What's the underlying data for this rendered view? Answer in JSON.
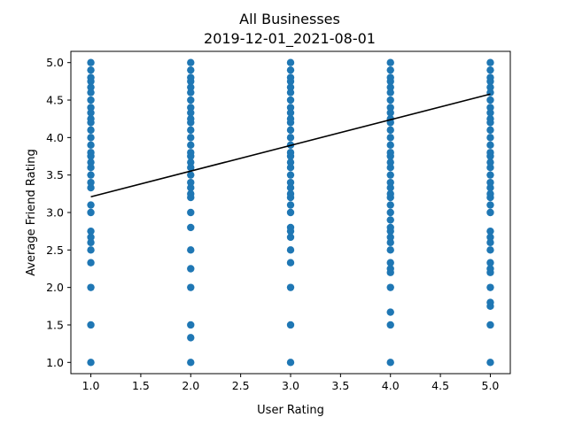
{
  "chart_data": {
    "type": "scatter",
    "title": "All Businesses",
    "subtitle": "2019-12-01_2021-08-01",
    "xlabel": "User Rating",
    "ylabel": "Average Friend Rating",
    "xlim": [
      0.8,
      5.2
    ],
    "ylim": [
      0.85,
      5.15
    ],
    "xticks": [
      1.0,
      1.5,
      2.0,
      2.5,
      3.0,
      3.5,
      4.0,
      4.5,
      5.0
    ],
    "xtick_labels": [
      "1.0",
      "1.5",
      "2.0",
      "2.5",
      "3.0",
      "3.5",
      "4.0",
      "4.5",
      "5.0"
    ],
    "yticks": [
      1.0,
      1.5,
      2.0,
      2.5,
      3.0,
      3.5,
      4.0,
      4.5,
      5.0
    ],
    "ytick_labels": [
      "1.0",
      "1.5",
      "2.0",
      "2.5",
      "3.0",
      "3.5",
      "4.0",
      "4.5",
      "5.0"
    ],
    "grid": false,
    "point_color": "#1f77b4",
    "fit_line_color": "#000000",
    "points": {
      "1": [
        1.0,
        1.5,
        2.0,
        2.33,
        2.5,
        2.6,
        2.67,
        2.75,
        3.0,
        3.1,
        3.33,
        3.4,
        3.5,
        3.6,
        3.67,
        3.75,
        3.8,
        3.9,
        4.0,
        4.1,
        4.2,
        4.25,
        4.33,
        4.4,
        4.5,
        4.6,
        4.67,
        4.75,
        4.8,
        4.9,
        5.0
      ],
      "2": [
        1.0,
        1.33,
        1.5,
        2.0,
        2.25,
        2.5,
        2.8,
        3.0,
        3.2,
        3.25,
        3.33,
        3.4,
        3.5,
        3.6,
        3.67,
        3.75,
        3.8,
        3.9,
        4.0,
        4.1,
        4.2,
        4.25,
        4.33,
        4.4,
        4.5,
        4.6,
        4.67,
        4.75,
        4.8,
        4.9,
        5.0
      ],
      "3": [
        1.0,
        1.5,
        2.0,
        2.33,
        2.5,
        2.67,
        2.75,
        2.8,
        3.0,
        3.1,
        3.2,
        3.25,
        3.33,
        3.4,
        3.5,
        3.6,
        3.67,
        3.75,
        3.8,
        3.9,
        4.0,
        4.1,
        4.2,
        4.25,
        4.33,
        4.4,
        4.5,
        4.6,
        4.67,
        4.75,
        4.8,
        4.9,
        5.0
      ],
      "4": [
        1.0,
        1.5,
        1.67,
        2.0,
        2.2,
        2.25,
        2.33,
        2.5,
        2.6,
        2.67,
        2.75,
        2.8,
        2.9,
        3.0,
        3.1,
        3.2,
        3.25,
        3.33,
        3.4,
        3.5,
        3.6,
        3.67,
        3.75,
        3.8,
        3.9,
        4.0,
        4.1,
        4.2,
        4.25,
        4.33,
        4.4,
        4.5,
        4.6,
        4.67,
        4.75,
        4.8,
        4.9,
        5.0
      ],
      "5": [
        1.0,
        1.5,
        1.75,
        1.8,
        2.0,
        2.2,
        2.25,
        2.33,
        2.5,
        2.6,
        2.67,
        2.75,
        3.0,
        3.1,
        3.2,
        3.25,
        3.33,
        3.4,
        3.5,
        3.6,
        3.67,
        3.75,
        3.8,
        3.9,
        4.0,
        4.1,
        4.2,
        4.25,
        4.33,
        4.4,
        4.5,
        4.6,
        4.67,
        4.75,
        4.8,
        4.9,
        5.0
      ]
    },
    "fit_line": {
      "x": [
        1.0,
        5.0
      ],
      "y": [
        3.21,
        4.58
      ]
    }
  }
}
